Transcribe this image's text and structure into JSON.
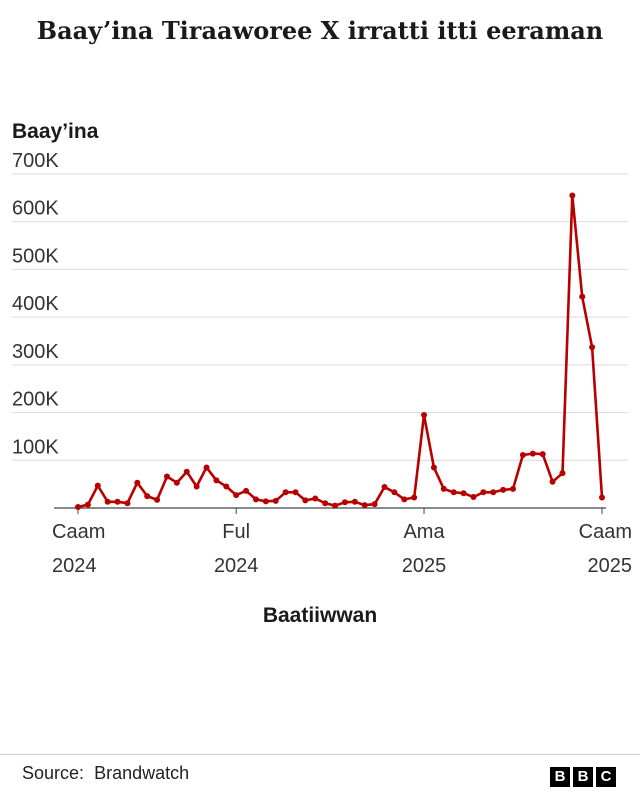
{
  "chart_data": {
    "type": "line",
    "title": "Baay’ina Tiraaworee X irratti itti eeraman",
    "ylabel": "Baay’ina",
    "xlabel": "Baatiiwwan",
    "ylim": [
      0,
      700000
    ],
    "y_ticks": [
      {
        "value": 100000,
        "label": "100K"
      },
      {
        "value": 200000,
        "label": "200K"
      },
      {
        "value": 300000,
        "label": "300K"
      },
      {
        "value": 400000,
        "label": "400K"
      },
      {
        "value": 500000,
        "label": "500K"
      },
      {
        "value": 600000,
        "label": "600K"
      },
      {
        "value": 700000,
        "label": "700K"
      }
    ],
    "x_ticks": [
      {
        "index": 0,
        "line1": "Caam",
        "line2": "2024"
      },
      {
        "index": 16,
        "line1": "Ful",
        "line2": "2024"
      },
      {
        "index": 35,
        "line1": "Ama",
        "line2": "2025"
      },
      {
        "index": 53,
        "line1": "Caam",
        "line2": "2025"
      }
    ],
    "grid": true,
    "line_color": "#b80000",
    "series": [
      {
        "values": [
          2000,
          7000,
          47000,
          13000,
          13000,
          10000,
          53000,
          25000,
          17000,
          66000,
          53000,
          76000,
          45000,
          85000,
          58000,
          45000,
          27000,
          36000,
          18000,
          14000,
          15000,
          33000,
          33000,
          16000,
          20000,
          10000,
          5000,
          12000,
          13000,
          6000,
          8000,
          44000,
          33000,
          18000,
          22000,
          195000,
          85000,
          40000,
          33000,
          31000,
          23000,
          33000,
          33000,
          38000,
          40000,
          111000,
          114000,
          113000,
          55000,
          73000,
          655000,
          443000,
          337000,
          22000
        ]
      }
    ]
  },
  "footer": {
    "source_label": "Source:",
    "source_value": "Brandwatch",
    "logo_letters": [
      "B",
      "B",
      "C"
    ]
  }
}
